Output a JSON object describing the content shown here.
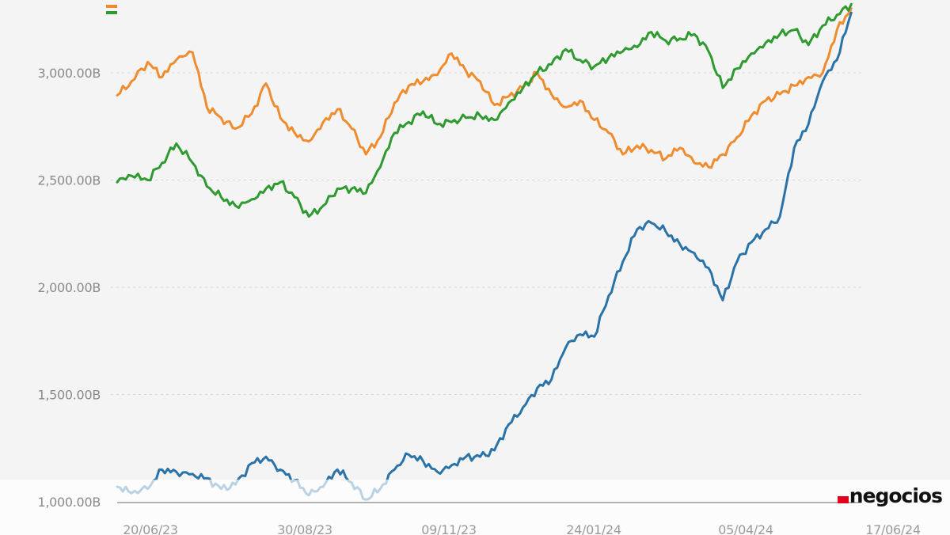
{
  "brand": {
    "logo_text": "negocios",
    "accent": "#e3001b"
  },
  "chart_data": {
    "type": "line",
    "title": "",
    "xlabel": "",
    "ylabel": "",
    "x_ticks": [
      "20/06/23",
      "30/08/23",
      "09/11/23",
      "24/01/24",
      "05/04/24",
      "17/06/24"
    ],
    "y_ticks": [
      {
        "value": 1000,
        "label": "1,000.00B"
      },
      {
        "value": 1500,
        "label": "1,500.00B"
      },
      {
        "value": 2000,
        "label": "2,000.00B"
      },
      {
        "value": 2500,
        "label": "2,500.00B"
      },
      {
        "value": 3000,
        "label": "3,000.00B"
      }
    ],
    "ylim": [
      1000,
      3330
    ],
    "grid": "horizontal dashed",
    "legend": "top-left (cropped)",
    "series": [
      {
        "color": "#f08c2e",
        "points": [
          [
            "2023-06-20",
            2895
          ],
          [
            "2023-06-27",
            2960
          ],
          [
            "2023-07-05",
            3050
          ],
          [
            "2023-07-12",
            2980
          ],
          [
            "2023-07-19",
            3060
          ],
          [
            "2023-07-27",
            3095
          ],
          [
            "2023-08-03",
            2840
          ],
          [
            "2023-08-10",
            2790
          ],
          [
            "2023-08-17",
            2740
          ],
          [
            "2023-08-25",
            2810
          ],
          [
            "2023-09-01",
            2950
          ],
          [
            "2023-09-08",
            2790
          ],
          [
            "2023-09-15",
            2720
          ],
          [
            "2023-09-22",
            2680
          ],
          [
            "2023-09-29",
            2770
          ],
          [
            "2023-10-06",
            2830
          ],
          [
            "2023-10-13",
            2740
          ],
          [
            "2023-10-20",
            2620
          ],
          [
            "2023-10-27",
            2700
          ],
          [
            "2023-11-03",
            2860
          ],
          [
            "2023-11-10",
            2940
          ],
          [
            "2023-11-17",
            2960
          ],
          [
            "2023-11-24",
            2990
          ],
          [
            "2023-12-01",
            3090
          ],
          [
            "2023-12-08",
            3010
          ],
          [
            "2023-12-15",
            2960
          ],
          [
            "2023-12-22",
            2850
          ],
          [
            "2023-12-29",
            2890
          ],
          [
            "2024-01-05",
            2930
          ],
          [
            "2024-01-12",
            3000
          ],
          [
            "2024-01-19",
            2900
          ],
          [
            "2024-01-26",
            2840
          ],
          [
            "2024-02-02",
            2870
          ],
          [
            "2024-02-09",
            2780
          ],
          [
            "2024-02-16",
            2720
          ],
          [
            "2024-02-23",
            2620
          ],
          [
            "2024-03-01",
            2660
          ],
          [
            "2024-03-08",
            2640
          ],
          [
            "2024-03-15",
            2600
          ],
          [
            "2024-03-22",
            2650
          ],
          [
            "2024-03-29",
            2580
          ],
          [
            "2024-04-05",
            2560
          ],
          [
            "2024-04-12",
            2620
          ],
          [
            "2024-04-19",
            2700
          ],
          [
            "2024-04-26",
            2800
          ],
          [
            "2024-05-03",
            2870
          ],
          [
            "2024-05-10",
            2900
          ],
          [
            "2024-05-17",
            2940
          ],
          [
            "2024-05-24",
            2980
          ],
          [
            "2024-05-31",
            3000
          ],
          [
            "2024-06-07",
            3200
          ],
          [
            "2024-06-14",
            3300
          ]
        ]
      },
      {
        "color": "#2e9a30",
        "points": [
          [
            "2023-06-20",
            2490
          ],
          [
            "2023-06-27",
            2520
          ],
          [
            "2023-07-05",
            2500
          ],
          [
            "2023-07-12",
            2580
          ],
          [
            "2023-07-19",
            2670
          ],
          [
            "2023-07-27",
            2580
          ],
          [
            "2023-08-03",
            2470
          ],
          [
            "2023-08-10",
            2420
          ],
          [
            "2023-08-17",
            2380
          ],
          [
            "2023-08-25",
            2410
          ],
          [
            "2023-09-01",
            2460
          ],
          [
            "2023-09-08",
            2490
          ],
          [
            "2023-09-15",
            2420
          ],
          [
            "2023-09-22",
            2330
          ],
          [
            "2023-09-29",
            2380
          ],
          [
            "2023-10-06",
            2460
          ],
          [
            "2023-10-13",
            2460
          ],
          [
            "2023-10-20",
            2440
          ],
          [
            "2023-10-27",
            2560
          ],
          [
            "2023-11-03",
            2720
          ],
          [
            "2023-11-10",
            2770
          ],
          [
            "2023-11-17",
            2820
          ],
          [
            "2023-11-24",
            2760
          ],
          [
            "2023-12-01",
            2770
          ],
          [
            "2023-12-08",
            2790
          ],
          [
            "2023-12-15",
            2800
          ],
          [
            "2023-12-22",
            2780
          ],
          [
            "2023-12-29",
            2860
          ],
          [
            "2024-01-05",
            2930
          ],
          [
            "2024-01-12",
            3000
          ],
          [
            "2024-01-19",
            3040
          ],
          [
            "2024-01-26",
            3110
          ],
          [
            "2024-02-02",
            3060
          ],
          [
            "2024-02-09",
            3030
          ],
          [
            "2024-02-16",
            3070
          ],
          [
            "2024-02-23",
            3100
          ],
          [
            "2024-03-01",
            3120
          ],
          [
            "2024-03-08",
            3190
          ],
          [
            "2024-03-15",
            3150
          ],
          [
            "2024-03-22",
            3160
          ],
          [
            "2024-03-29",
            3180
          ],
          [
            "2024-04-05",
            3100
          ],
          [
            "2024-04-12",
            2930
          ],
          [
            "2024-04-19",
            3020
          ],
          [
            "2024-04-26",
            3090
          ],
          [
            "2024-05-03",
            3140
          ],
          [
            "2024-05-10",
            3180
          ],
          [
            "2024-05-17",
            3200
          ],
          [
            "2024-05-24",
            3130
          ],
          [
            "2024-05-31",
            3220
          ],
          [
            "2024-06-07",
            3270
          ],
          [
            "2024-06-14",
            3320
          ]
        ]
      },
      {
        "color": "#2a73a8",
        "points": [
          [
            "2023-06-20",
            1070
          ],
          [
            "2023-06-27",
            1040
          ],
          [
            "2023-07-05",
            1060
          ],
          [
            "2023-07-12",
            1150
          ],
          [
            "2023-07-19",
            1140
          ],
          [
            "2023-07-27",
            1130
          ],
          [
            "2023-08-03",
            1110
          ],
          [
            "2023-08-10",
            1060
          ],
          [
            "2023-08-17",
            1080
          ],
          [
            "2023-08-25",
            1180
          ],
          [
            "2023-09-01",
            1210
          ],
          [
            "2023-09-08",
            1150
          ],
          [
            "2023-09-15",
            1100
          ],
          [
            "2023-09-22",
            1030
          ],
          [
            "2023-09-29",
            1070
          ],
          [
            "2023-10-06",
            1150
          ],
          [
            "2023-10-13",
            1090
          ],
          [
            "2023-10-20",
            1010
          ],
          [
            "2023-10-27",
            1060
          ],
          [
            "2023-11-03",
            1150
          ],
          [
            "2023-11-10",
            1220
          ],
          [
            "2023-11-17",
            1190
          ],
          [
            "2023-11-24",
            1140
          ],
          [
            "2023-12-01",
            1170
          ],
          [
            "2023-12-08",
            1210
          ],
          [
            "2023-12-15",
            1210
          ],
          [
            "2023-12-22",
            1240
          ],
          [
            "2023-12-29",
            1360
          ],
          [
            "2024-01-05",
            1440
          ],
          [
            "2024-01-12",
            1530
          ],
          [
            "2024-01-19",
            1570
          ],
          [
            "2024-01-26",
            1720
          ],
          [
            "2024-02-02",
            1780
          ],
          [
            "2024-02-09",
            1770
          ],
          [
            "2024-02-16",
            1960
          ],
          [
            "2024-02-23",
            2120
          ],
          [
            "2024-03-01",
            2270
          ],
          [
            "2024-03-08",
            2300
          ],
          [
            "2024-03-15",
            2260
          ],
          [
            "2024-03-22",
            2200
          ],
          [
            "2024-03-29",
            2160
          ],
          [
            "2024-04-05",
            2090
          ],
          [
            "2024-04-12",
            1940
          ],
          [
            "2024-04-19",
            2120
          ],
          [
            "2024-04-26",
            2210
          ],
          [
            "2024-05-03",
            2270
          ],
          [
            "2024-05-10",
            2330
          ],
          [
            "2024-05-17",
            2650
          ],
          [
            "2024-05-24",
            2760
          ],
          [
            "2024-05-31",
            2960
          ],
          [
            "2024-06-07",
            3060
          ],
          [
            "2024-06-14",
            3280
          ]
        ]
      }
    ]
  }
}
